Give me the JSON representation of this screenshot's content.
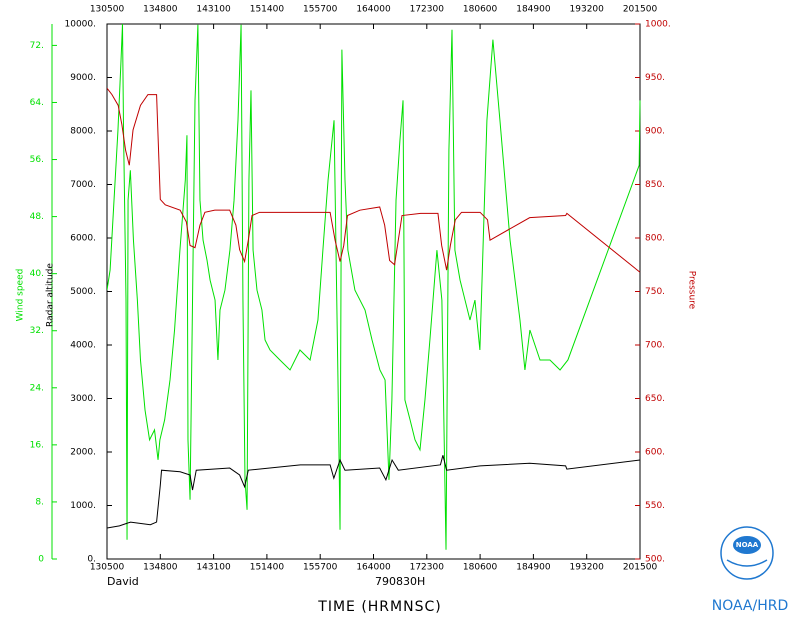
{
  "chart_data": {
    "type": "line",
    "xlabel": "TIME (HRMNSC)",
    "storm": "David",
    "date_label": "790830H",
    "footer": "NOAA/HRD",
    "logo": "NOAA",
    "xlim": [
      "130500",
      "201500"
    ],
    "xticks": [
      "130500",
      "134800",
      "143100",
      "151400",
      "155700",
      "164000",
      "172300",
      "180600",
      "184900",
      "193200",
      "201500"
    ],
    "ylabel": "Radar altitude",
    "ylim": [
      0,
      10000
    ],
    "yticks": [
      {
        "value": 0,
        "label": "0."
      },
      {
        "value": 1000,
        "label": "1000."
      },
      {
        "value": 2000,
        "label": "2000."
      },
      {
        "value": 3000,
        "label": "3000."
      },
      {
        "value": 4000,
        "label": "4000."
      },
      {
        "value": 5000,
        "label": "5000."
      },
      {
        "value": 6000,
        "label": "6000."
      },
      {
        "value": 7000,
        "label": "7000."
      },
      {
        "value": 8000,
        "label": "8000."
      },
      {
        "value": 9000,
        "label": "9000."
      },
      {
        "value": 10000,
        "label": "10000."
      }
    ],
    "y2label": "Pressure",
    "y2lim": [
      500,
      1000
    ],
    "y2ticks": [
      {
        "value": 500,
        "label": "500."
      },
      {
        "value": 550,
        "label": "550."
      },
      {
        "value": 600,
        "label": "600."
      },
      {
        "value": 650,
        "label": "650."
      },
      {
        "value": 700,
        "label": "700."
      },
      {
        "value": 750,
        "label": "750."
      },
      {
        "value": 800,
        "label": "800."
      },
      {
        "value": 850,
        "label": "850."
      },
      {
        "value": 900,
        "label": "900."
      },
      {
        "value": 950,
        "label": "950."
      },
      {
        "value": 1000,
        "label": "1000."
      }
    ],
    "y3label": "Wind speed",
    "y3lim": [
      0,
      75
    ],
    "y3ticks": [
      0,
      {
        "value": 8,
        "label": "8."
      },
      {
        "value": 16,
        "label": "16."
      },
      {
        "value": 24,
        "label": "24."
      },
      {
        "value": 32,
        "label": "32."
      },
      {
        "value": 40,
        "label": "40."
      },
      {
        "value": 48,
        "label": "48."
      },
      {
        "value": 56,
        "label": "56."
      },
      {
        "value": 64,
        "label": "64."
      },
      {
        "value": 72,
        "label": "72."
      }
    ],
    "series": [
      {
        "axis": "y3",
        "color": "#00e000",
        "x": [
          "130500",
          "130730",
          "131040",
          "131350",
          "131620",
          "131730",
          "131820",
          "132020",
          "132110",
          "132200",
          "132350",
          "132620",
          "132930",
          "133200",
          "133540",
          "133920",
          "134320",
          "134610",
          "134740",
          "135130",
          "135550",
          "135930",
          "140350",
          "140810",
          "140930",
          "141020",
          "141200",
          "141330",
          "141600",
          "141820",
          "142000",
          "142230",
          "142540",
          "142810",
          "143210",
          "143430",
          "143610",
          "144010",
          "144410",
          "144730",
          "145040",
          "145310",
          "145440",
          "145620",
          "145800",
          "145930",
          "150110",
          "150250",
          "150600",
          "151000",
          "151230",
          "151630",
          "152430",
          "153240",
          "154040",
          "154850",
          "155510",
          "155910",
          "160320",
          "160810",
          "161120",
          "161300",
          "161430",
          "161700",
          "161920",
          "162500",
          "163310",
          "163850",
          "164510",
          "164920",
          "165230",
          "165450",
          "165810",
          "170120",
          "170350",
          "170520",
          "170930",
          "171330",
          "171730",
          "172130",
          "172530",
          "173110",
          "173510",
          "173830",
          "174050",
          "174320",
          "174540",
          "174950",
          "175350",
          "175750",
          "180150",
          "180550",
          "181130",
          "181620",
          "182200",
          "183010",
          "183810",
          "184210",
          "184610",
          "185420",
          "190220",
          "191030",
          "191650",
          "201420",
          "201500"
        ],
        "values": [
          37.7,
          40.5,
          50.3,
          60.1,
          70.0,
          75,
          60.1,
          36.3,
          2.7,
          50.3,
          54.5,
          44.7,
          36.3,
          27.9,
          20.9,
          16.7,
          18.1,
          13.9,
          16.7,
          19.5,
          25.1,
          32.1,
          43.3,
          53.1,
          59.4,
          16.7,
          8.3,
          29.3,
          64.3,
          74.9,
          50.3,
          44.7,
          41.9,
          39.1,
          36.3,
          27.9,
          34.9,
          37.7,
          43.3,
          50.3,
          61.5,
          74.9,
          36.3,
          11.1,
          6.9,
          53.1,
          65.7,
          43.3,
          37.7,
          34.9,
          30.7,
          29.3,
          27.9,
          26.5,
          29.3,
          27.9,
          33.5,
          43.3,
          53.1,
          61.5,
          25.1,
          4.1,
          71.4,
          53.1,
          43.3,
          37.7,
          34.9,
          30.7,
          26.5,
          25.1,
          11.1,
          22.3,
          50.3,
          58.7,
          64.3,
          22.3,
          19.5,
          16.7,
          15.3,
          22.3,
          30.7,
          43.3,
          36.3,
          1.3,
          57.3,
          74.2,
          43.3,
          39.1,
          36.3,
          33.5,
          36.3,
          29.3,
          61.5,
          72.8,
          61.5,
          44.7,
          33.5,
          26.5,
          32.1,
          27.9,
          27.9,
          26.5,
          27.9,
          55.2,
          64.3
        ]
      },
      {
        "axis": "y",
        "color": "#000000",
        "x": [
          "130500",
          "131500",
          "132400",
          "134000",
          "134500",
          "134800",
          "134900",
          "140400",
          "141200",
          "141400",
          "141700",
          "144400",
          "145200",
          "145600",
          "145900",
          "154100",
          "160500",
          "160800",
          "161300",
          "161700",
          "164500",
          "165000",
          "165500",
          "170000",
          "173400",
          "173600",
          "173900",
          "180600",
          "184600",
          "191500",
          "191600",
          "201500"
        ],
        "values": [
          580,
          620,
          690,
          640,
          690,
          1380,
          1660,
          1630,
          1570,
          1290,
          1660,
          1700,
          1570,
          1350,
          1660,
          1760,
          1760,
          1510,
          1850,
          1660,
          1700,
          1480,
          1850,
          1660,
          1760,
          1940,
          1660,
          1740,
          1790,
          1740,
          1680,
          1850
        ]
      },
      {
        "axis": "y2",
        "color": "#c00000",
        "x": [
          "130500",
          "130900",
          "131400",
          "131700",
          "132000",
          "132300",
          "132600",
          "133200",
          "133800",
          "134500",
          "134800",
          "135200",
          "140400",
          "140900",
          "141200",
          "141600",
          "142000",
          "142400",
          "143200",
          "144400",
          "144900",
          "145200",
          "145600",
          "145900",
          "150200",
          "150800",
          "154100",
          "160500",
          "160900",
          "161300",
          "161600",
          "161900",
          "162900",
          "164500",
          "164900",
          "165300",
          "165700",
          "170000",
          "170300",
          "171800",
          "173200",
          "173500",
          "173900",
          "174200",
          "174600",
          "175100",
          "180600",
          "181200",
          "181400",
          "184600",
          "191500",
          "191600",
          "201500"
        ],
        "values": [
          940,
          934,
          924,
          906,
          882,
          868,
          901,
          924,
          934,
          934,
          836,
          831,
          826,
          815,
          793,
          791,
          812,
          824,
          826,
          826,
          812,
          789,
          778,
          798,
          821,
          824,
          824,
          824,
          798,
          778,
          793,
          821,
          826,
          829,
          812,
          779,
          775,
          798,
          821,
          823,
          823,
          793,
          770,
          793,
          817,
          824,
          824,
          817,
          798,
          819,
          821,
          823,
          768
        ]
      }
    ]
  }
}
